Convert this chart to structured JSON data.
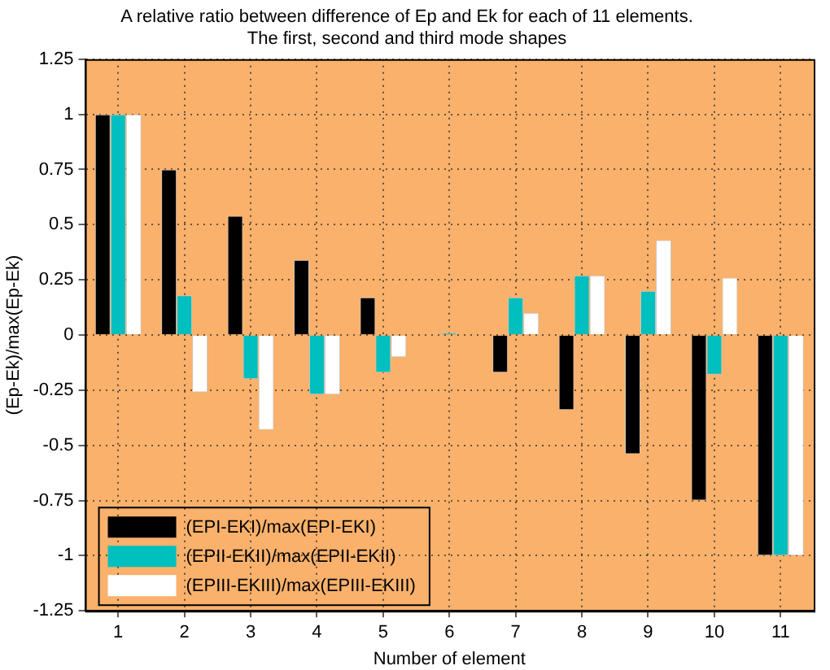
{
  "chart_data": {
    "type": "bar",
    "title": "A relative ratio between difference of Ep and Ek for each of 11 elements.\nThe first, second and third mode shapes",
    "xlabel": "Number of element",
    "ylabel": "(Ep-Ek)/max(Ep-Ek)",
    "categories": [
      "1",
      "2",
      "3",
      "4",
      "5",
      "6",
      "7",
      "8",
      "9",
      "10",
      "11"
    ],
    "series": [
      {
        "name": "(EPI-EKI)/max(EPI-EKI)",
        "color": "#000000",
        "values": [
          1,
          0.75,
          0.54,
          0.34,
          0.17,
          0,
          -0.17,
          -0.34,
          -0.54,
          -0.75,
          -1
        ]
      },
      {
        "name": "(EPII-EKII)/max(EPII-EKII)",
        "color": "#00bfbf",
        "values": [
          1,
          0.18,
          -0.2,
          -0.27,
          -0.17,
          0.01,
          0.17,
          0.27,
          0.2,
          -0.18,
          -1
        ]
      },
      {
        "name": "(EPIII-EKIII)/max(EPIII-EKIII)",
        "color": "#ffffff",
        "values": [
          1,
          -0.26,
          -0.43,
          -0.27,
          -0.1,
          0,
          0.1,
          0.27,
          0.43,
          0.26,
          -1
        ]
      }
    ],
    "ylim": [
      -1.25,
      1.25
    ],
    "yticks": [
      -1.25,
      -1,
      -0.75,
      -0.5,
      -0.25,
      0,
      0.25,
      0.5,
      0.75,
      1,
      1.25
    ],
    "grid": true,
    "legend": "bottom left"
  }
}
